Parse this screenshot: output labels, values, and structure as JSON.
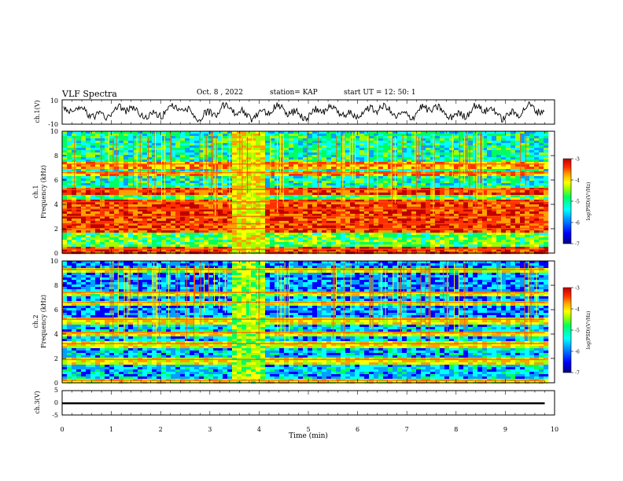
{
  "header": {
    "title": "VLF Spectra",
    "date": "Oct. 8  , 2022",
    "station": "station= KAP",
    "start": "start  UT =   12: 50: 1"
  },
  "chart_data": [
    {
      "type": "line",
      "name": "ch1-waveform",
      "ylabel": "ch.1(V)",
      "ylim": [
        -10,
        10
      ],
      "xlim": [
        0,
        10
      ],
      "yticks": [
        "10",
        "-10"
      ]
    },
    {
      "type": "heatmap",
      "name": "ch1-spectrogram",
      "ylabel": "ch.1\nFrequency  (kHz)",
      "ylabel_top": "ch.1",
      "ylabel_bottom": "Frequency  (kHz)",
      "ylim": [
        0,
        10
      ],
      "yticks": [
        "0",
        "2",
        "4",
        "6",
        "8",
        "10"
      ],
      "x_extent_min": [
        0,
        9.8
      ],
      "disturbance_interval_min": [
        3.4,
        4.05
      ],
      "bands_khz": [
        0.3,
        2.0,
        2.4,
        3.0,
        3.6,
        4.2,
        5.2,
        6.6,
        7.3
      ],
      "colorbar": {
        "label": "log(PSD)(V²/Hz)",
        "range": [
          -7,
          -3
        ],
        "ticks": [
          "-3",
          "-4",
          "-5",
          "-6",
          "-7"
        ]
      }
    },
    {
      "type": "heatmap",
      "name": "ch2-spectrogram",
      "ylabel": "ch.2\nFrequency  (kHz)",
      "ylabel_top": "ch.2",
      "ylabel_bottom": "Frequency  (kHz)",
      "ylim": [
        0,
        10
      ],
      "yticks": [
        "0",
        "2",
        "4",
        "6",
        "8",
        "10"
      ],
      "x_extent_min": [
        0,
        9.8
      ],
      "disturbance_interval_min": [
        3.4,
        4.05
      ],
      "bands_khz": [
        0.2,
        1.9,
        3.2,
        4.1,
        5.2,
        6.6,
        7.4,
        9.3
      ],
      "colorbar": {
        "label": "log(PSD)(V²/Hz)",
        "range": [
          -7,
          -3
        ],
        "ticks": [
          "-3",
          "-4",
          "-5",
          "-6",
          "-7"
        ]
      }
    },
    {
      "type": "line",
      "name": "ch3-signal",
      "ylabel": "ch.3(V)",
      "ylim": [
        -5,
        5
      ],
      "yticks": [
        "5",
        "0",
        "-5"
      ],
      "level_v": [
        -0.6,
        0.2
      ],
      "xlabel": "Time  (min)",
      "xlim": [
        0,
        10
      ],
      "xticks": [
        "0",
        "1",
        "2",
        "3",
        "4",
        "5",
        "6",
        "7",
        "8",
        "9",
        "10"
      ]
    }
  ],
  "colors": {
    "scale": [
      "#00007f",
      "#0000ff",
      "#00a0ff",
      "#00ffff",
      "#00ff60",
      "#a0ff00",
      "#ffff00",
      "#ffa000",
      "#ff3000",
      "#c00000"
    ],
    "line": "#000000"
  }
}
